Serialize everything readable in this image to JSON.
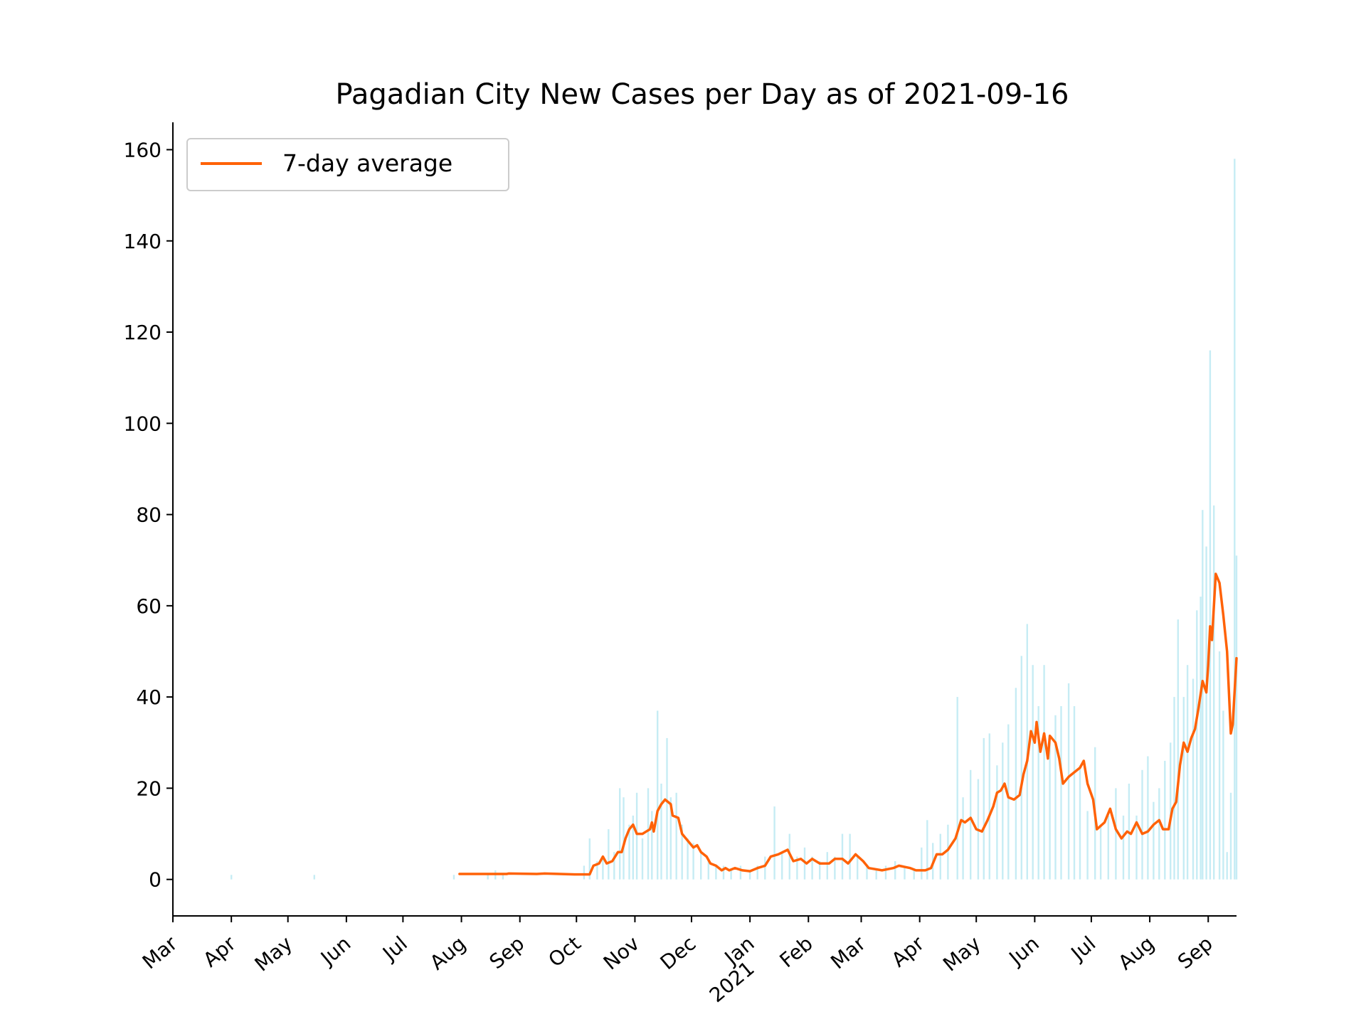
{
  "chart_data": {
    "type": "bar",
    "title": "Pagadian City New Cases per Day as of 2021-09-16",
    "xlabel": "",
    "ylabel": "",
    "x_range": [
      "2020-03-01",
      "2021-09-16"
    ],
    "ylim": [
      -8,
      166
    ],
    "yticks": [
      0,
      20,
      40,
      60,
      80,
      100,
      120,
      140,
      160
    ],
    "yticklabels": [
      "0",
      "20",
      "40",
      "60",
      "80",
      "100",
      "120",
      "140",
      "160"
    ],
    "xticks": [
      "2020-03-01",
      "2020-04-01",
      "2020-05-01",
      "2020-06-01",
      "2020-07-01",
      "2020-08-01",
      "2020-09-01",
      "2020-10-01",
      "2020-11-01",
      "2020-12-01",
      "2021-01-01",
      "2021-02-01",
      "2021-03-01",
      "2021-04-01",
      "2021-05-01",
      "2021-06-01",
      "2021-07-01",
      "2021-08-01",
      "2021-09-01"
    ],
    "xticklabels": [
      "Mar",
      "Apr",
      "May",
      "Jun",
      "Jul",
      "Aug",
      "Sep",
      "Oct",
      "Nov",
      "Dec",
      "Jan\n2021",
      "Feb",
      "Mar",
      "Apr",
      "May",
      "Jun",
      "Jul",
      "Aug",
      "Sep"
    ],
    "legend": {
      "placement": "upper-left",
      "entries": [
        "7-day average"
      ]
    },
    "grid": false,
    "colors": {
      "bars": "#c6ecf4",
      "line": "#ff6207"
    },
    "series": [
      {
        "type": "bar",
        "points": [
          [
            "2020-04-01",
            1
          ],
          [
            "2020-05-15",
            1
          ],
          [
            "2020-07-28",
            1
          ],
          [
            "2020-08-15",
            1
          ],
          [
            "2020-08-19",
            2
          ],
          [
            "2020-08-23",
            1
          ],
          [
            "2020-10-05",
            3
          ],
          [
            "2020-10-08",
            9
          ],
          [
            "2020-10-12",
            4
          ],
          [
            "2020-10-15",
            5
          ],
          [
            "2020-10-18",
            11
          ],
          [
            "2020-10-21",
            6
          ],
          [
            "2020-10-24",
            20
          ],
          [
            "2020-10-26",
            18
          ],
          [
            "2020-10-29",
            12
          ],
          [
            "2020-10-31",
            14
          ],
          [
            "2020-11-02",
            19
          ],
          [
            "2020-11-05",
            9
          ],
          [
            "2020-11-08",
            20
          ],
          [
            "2020-11-10",
            15
          ],
          [
            "2020-11-13",
            37
          ],
          [
            "2020-11-15",
            21
          ],
          [
            "2020-11-18",
            31
          ],
          [
            "2020-11-20",
            18
          ],
          [
            "2020-11-23",
            19
          ],
          [
            "2020-11-26",
            12
          ],
          [
            "2020-11-29",
            9
          ],
          [
            "2020-12-02",
            8
          ],
          [
            "2020-12-06",
            6
          ],
          [
            "2020-12-10",
            4
          ],
          [
            "2020-12-14",
            3
          ],
          [
            "2020-12-18",
            3
          ],
          [
            "2020-12-22",
            2
          ],
          [
            "2020-12-27",
            3
          ],
          [
            "2021-01-01",
            2
          ],
          [
            "2021-01-05",
            3
          ],
          [
            "2021-01-09",
            5
          ],
          [
            "2021-01-14",
            16
          ],
          [
            "2021-01-18",
            6
          ],
          [
            "2021-01-22",
            10
          ],
          [
            "2021-01-26",
            5
          ],
          [
            "2021-01-30",
            7
          ],
          [
            "2021-02-03",
            5
          ],
          [
            "2021-02-07",
            4
          ],
          [
            "2021-02-11",
            6
          ],
          [
            "2021-02-15",
            5
          ],
          [
            "2021-02-19",
            10
          ],
          [
            "2021-02-23",
            10
          ],
          [
            "2021-02-27",
            5
          ],
          [
            "2021-03-04",
            3
          ],
          [
            "2021-03-09",
            2
          ],
          [
            "2021-03-14",
            3
          ],
          [
            "2021-03-19",
            4
          ],
          [
            "2021-03-24",
            3
          ],
          [
            "2021-03-29",
            2
          ],
          [
            "2021-04-02",
            7
          ],
          [
            "2021-04-05",
            13
          ],
          [
            "2021-04-08",
            8
          ],
          [
            "2021-04-12",
            10
          ],
          [
            "2021-04-16",
            12
          ],
          [
            "2021-04-21",
            40
          ],
          [
            "2021-04-24",
            18
          ],
          [
            "2021-04-28",
            24
          ],
          [
            "2021-05-02",
            22
          ],
          [
            "2021-05-05",
            31
          ],
          [
            "2021-05-08",
            32
          ],
          [
            "2021-05-12",
            25
          ],
          [
            "2021-05-15",
            30
          ],
          [
            "2021-05-18",
            34
          ],
          [
            "2021-05-22",
            42
          ],
          [
            "2021-05-25",
            49
          ],
          [
            "2021-05-28",
            56
          ],
          [
            "2021-05-31",
            47
          ],
          [
            "2021-06-03",
            38
          ],
          [
            "2021-06-06",
            47
          ],
          [
            "2021-06-09",
            30
          ],
          [
            "2021-06-12",
            36
          ],
          [
            "2021-06-15",
            38
          ],
          [
            "2021-06-19",
            43
          ],
          [
            "2021-06-22",
            38
          ],
          [
            "2021-06-25",
            25
          ],
          [
            "2021-06-29",
            15
          ],
          [
            "2021-07-03",
            29
          ],
          [
            "2021-07-06",
            12
          ],
          [
            "2021-07-10",
            14
          ],
          [
            "2021-07-14",
            20
          ],
          [
            "2021-07-18",
            14
          ],
          [
            "2021-07-21",
            21
          ],
          [
            "2021-07-25",
            14
          ],
          [
            "2021-07-28",
            24
          ],
          [
            "2021-07-31",
            27
          ],
          [
            "2021-08-03",
            17
          ],
          [
            "2021-08-06",
            20
          ],
          [
            "2021-08-09",
            26
          ],
          [
            "2021-08-12",
            30
          ],
          [
            "2021-08-14",
            40
          ],
          [
            "2021-08-16",
            57
          ],
          [
            "2021-08-19",
            40
          ],
          [
            "2021-08-21",
            47
          ],
          [
            "2021-08-24",
            44
          ],
          [
            "2021-08-26",
            59
          ],
          [
            "2021-08-28",
            62
          ],
          [
            "2021-08-29",
            81
          ],
          [
            "2021-08-31",
            73
          ],
          [
            "2021-09-02",
            116
          ],
          [
            "2021-09-04",
            82
          ],
          [
            "2021-09-07",
            50
          ],
          [
            "2021-09-09",
            37
          ],
          [
            "2021-09-11",
            6
          ],
          [
            "2021-09-13",
            19
          ],
          [
            "2021-09-15",
            158
          ],
          [
            "2021-09-16",
            71
          ]
        ]
      },
      {
        "type": "line",
        "name": "7-day average",
        "points": [
          [
            "2020-07-31",
            1.2
          ],
          [
            "2020-08-15",
            1.2
          ],
          [
            "2020-08-25",
            1.2
          ],
          [
            "2020-08-26",
            1.3
          ],
          [
            "2020-09-10",
            1.2
          ],
          [
            "2020-09-14",
            1.3
          ],
          [
            "2020-09-30",
            1.1
          ],
          [
            "2020-10-08",
            1.1
          ],
          [
            "2020-10-10",
            3
          ],
          [
            "2020-10-13",
            3.5
          ],
          [
            "2020-10-15",
            5
          ],
          [
            "2020-10-17",
            3.5
          ],
          [
            "2020-10-20",
            4
          ],
          [
            "2020-10-23",
            6
          ],
          [
            "2020-10-25",
            6
          ],
          [
            "2020-10-27",
            9
          ],
          [
            "2020-10-29",
            11
          ],
          [
            "2020-10-31",
            12
          ],
          [
            "2020-11-02",
            10
          ],
          [
            "2020-11-05",
            10
          ],
          [
            "2020-11-07",
            10.5
          ],
          [
            "2020-11-09",
            11
          ],
          [
            "2020-11-10",
            12.5
          ],
          [
            "2020-11-11",
            10.5
          ],
          [
            "2020-11-13",
            15
          ],
          [
            "2020-11-15",
            16.5
          ],
          [
            "2020-11-17",
            17.5
          ],
          [
            "2020-11-20",
            16.5
          ],
          [
            "2020-11-21",
            14
          ],
          [
            "2020-11-24",
            13.5
          ],
          [
            "2020-11-26",
            10
          ],
          [
            "2020-11-28",
            9
          ],
          [
            "2020-11-30",
            8
          ],
          [
            "2020-12-02",
            7
          ],
          [
            "2020-12-04",
            7.5
          ],
          [
            "2020-12-06",
            6
          ],
          [
            "2020-12-09",
            5
          ],
          [
            "2020-12-11",
            3.5
          ],
          [
            "2020-12-14",
            3
          ],
          [
            "2020-12-17",
            2
          ],
          [
            "2020-12-19",
            2.5
          ],
          [
            "2020-12-21",
            2
          ],
          [
            "2020-12-24",
            2.5
          ],
          [
            "2020-12-28",
            2
          ],
          [
            "2021-01-01",
            1.8
          ],
          [
            "2021-01-05",
            2.5
          ],
          [
            "2021-01-09",
            3
          ],
          [
            "2021-01-12",
            5
          ],
          [
            "2021-01-16",
            5.5
          ],
          [
            "2021-01-21",
            6.5
          ],
          [
            "2021-01-24",
            4
          ],
          [
            "2021-01-28",
            4.5
          ],
          [
            "2021-01-31",
            3.5
          ],
          [
            "2021-02-03",
            4.5
          ],
          [
            "2021-02-07",
            3.5
          ],
          [
            "2021-02-12",
            3.5
          ],
          [
            "2021-02-15",
            4.5
          ],
          [
            "2021-02-19",
            4.5
          ],
          [
            "2021-02-22",
            3.5
          ],
          [
            "2021-02-26",
            5.5
          ],
          [
            "2021-03-02",
            4
          ],
          [
            "2021-03-05",
            2.5
          ],
          [
            "2021-03-12",
            2
          ],
          [
            "2021-03-18",
            2.5
          ],
          [
            "2021-03-21",
            3
          ],
          [
            "2021-03-27",
            2.5
          ],
          [
            "2021-03-30",
            2
          ],
          [
            "2021-04-04",
            2
          ],
          [
            "2021-04-07",
            2.5
          ],
          [
            "2021-04-10",
            5.5
          ],
          [
            "2021-04-13",
            5.5
          ],
          [
            "2021-04-16",
            6.5
          ],
          [
            "2021-04-20",
            9
          ],
          [
            "2021-04-23",
            13
          ],
          [
            "2021-04-25",
            12.5
          ],
          [
            "2021-04-28",
            13.5
          ],
          [
            "2021-05-01",
            11
          ],
          [
            "2021-05-04",
            10.5
          ],
          [
            "2021-05-07",
            13
          ],
          [
            "2021-05-10",
            16
          ],
          [
            "2021-05-12",
            19
          ],
          [
            "2021-05-14",
            19.5
          ],
          [
            "2021-05-16",
            21
          ],
          [
            "2021-05-18",
            18
          ],
          [
            "2021-05-21",
            17.5
          ],
          [
            "2021-05-24",
            18.5
          ],
          [
            "2021-05-26",
            23
          ],
          [
            "2021-05-28",
            26
          ],
          [
            "2021-05-30",
            32.5
          ],
          [
            "2021-06-01",
            30
          ],
          [
            "2021-06-02",
            34.5
          ],
          [
            "2021-06-04",
            28
          ],
          [
            "2021-06-06",
            32
          ],
          [
            "2021-06-08",
            26.5
          ],
          [
            "2021-06-09",
            31.5
          ],
          [
            "2021-06-12",
            30
          ],
          [
            "2021-06-14",
            26.5
          ],
          [
            "2021-06-16",
            21
          ],
          [
            "2021-06-19",
            22.5
          ],
          [
            "2021-06-22",
            23.5
          ],
          [
            "2021-06-25",
            24.5
          ],
          [
            "2021-06-27",
            26
          ],
          [
            "2021-06-29",
            21
          ],
          [
            "2021-07-02",
            17.5
          ],
          [
            "2021-07-04",
            11
          ],
          [
            "2021-07-08",
            12.5
          ],
          [
            "2021-07-11",
            15.5
          ],
          [
            "2021-07-14",
            11
          ],
          [
            "2021-07-17",
            9
          ],
          [
            "2021-07-20",
            10.5
          ],
          [
            "2021-07-22",
            10
          ],
          [
            "2021-07-25",
            12.5
          ],
          [
            "2021-07-28",
            10
          ],
          [
            "2021-07-31",
            10.5
          ],
          [
            "2021-08-03",
            12
          ],
          [
            "2021-08-06",
            13
          ],
          [
            "2021-08-08",
            11
          ],
          [
            "2021-08-11",
            11
          ],
          [
            "2021-08-13",
            15.5
          ],
          [
            "2021-08-15",
            17
          ],
          [
            "2021-08-17",
            25
          ],
          [
            "2021-08-19",
            30
          ],
          [
            "2021-08-21",
            28
          ],
          [
            "2021-08-23",
            31
          ],
          [
            "2021-08-25",
            33
          ],
          [
            "2021-08-27",
            38
          ],
          [
            "2021-08-29",
            43.5
          ],
          [
            "2021-08-31",
            41
          ],
          [
            "2021-09-01",
            47
          ],
          [
            "2021-09-02",
            55.5
          ],
          [
            "2021-09-03",
            52.5
          ],
          [
            "2021-09-05",
            67
          ],
          [
            "2021-09-07",
            65
          ],
          [
            "2021-09-09",
            58
          ],
          [
            "2021-09-11",
            50
          ],
          [
            "2021-09-13",
            32
          ],
          [
            "2021-09-14",
            34
          ],
          [
            "2021-09-16",
            48.5
          ]
        ]
      }
    ]
  }
}
